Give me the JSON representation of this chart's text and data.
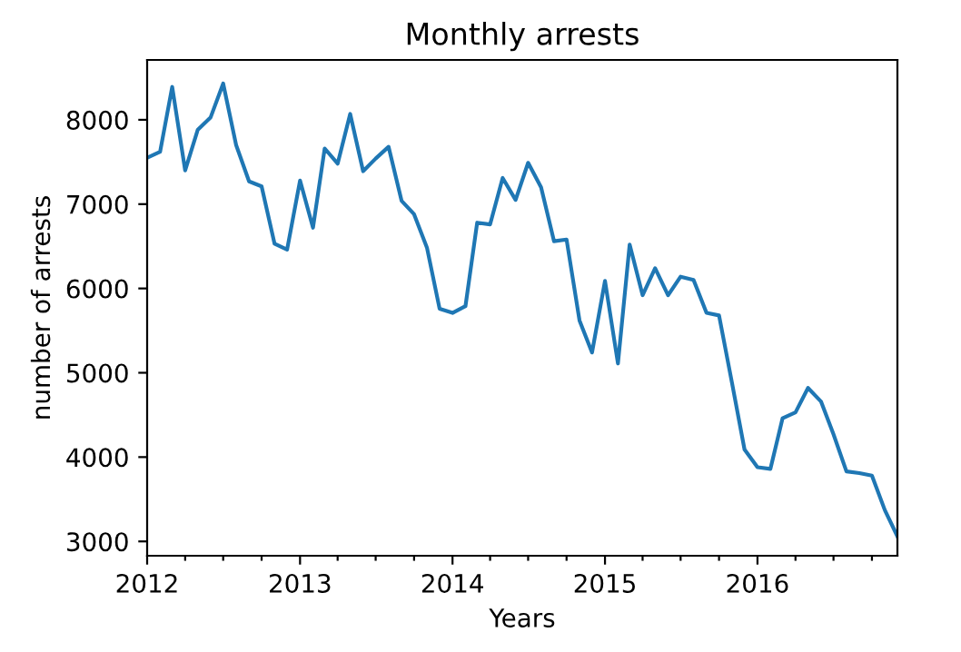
{
  "chart_data": {
    "type": "line",
    "title": "Monthly arrests",
    "xlabel": "Years",
    "ylabel": "number of arrests",
    "x": [
      "2012-01",
      "2012-02",
      "2012-03",
      "2012-04",
      "2012-05",
      "2012-06",
      "2012-07",
      "2012-08",
      "2012-09",
      "2012-10",
      "2012-11",
      "2012-12",
      "2013-01",
      "2013-02",
      "2013-03",
      "2013-04",
      "2013-05",
      "2013-06",
      "2013-07",
      "2013-08",
      "2013-09",
      "2013-10",
      "2013-11",
      "2013-12",
      "2014-01",
      "2014-02",
      "2014-03",
      "2014-04",
      "2014-05",
      "2014-06",
      "2014-07",
      "2014-08",
      "2014-09",
      "2014-10",
      "2014-11",
      "2014-12",
      "2015-01",
      "2015-02",
      "2015-03",
      "2015-04",
      "2015-05",
      "2015-06",
      "2015-07",
      "2015-08",
      "2015-09",
      "2015-10",
      "2015-11",
      "2015-12",
      "2016-01",
      "2016-02",
      "2016-03",
      "2016-04",
      "2016-05",
      "2016-06",
      "2016-07",
      "2016-08",
      "2016-09",
      "2016-10",
      "2016-11",
      "2016-12"
    ],
    "series": [
      {
        "color": "#1f77b4",
        "values": [
          7550,
          7620,
          8390,
          7400,
          7880,
          8030,
          8430,
          7700,
          7270,
          7210,
          6530,
          6460,
          7280,
          6720,
          7660,
          7480,
          8070,
          7390,
          7540,
          7680,
          7040,
          6880,
          6480,
          5760,
          5710,
          5790,
          6780,
          6760,
          7310,
          7050,
          7490,
          7200,
          6560,
          6580,
          5620,
          5240,
          6090,
          5110,
          6520,
          5920,
          6240,
          5920,
          6140,
          6100,
          5710,
          5680,
          4880,
          4090,
          3880,
          3860,
          4460,
          4530,
          4820,
          4660,
          4270,
          3830,
          3810,
          3780,
          3370,
          3060
        ]
      }
    ],
    "xlim": [
      "2012-01",
      "2016-12"
    ],
    "xticks": [
      {
        "value": "2012-01",
        "label": "2012"
      },
      {
        "value": "2012-04",
        "label": null
      },
      {
        "value": "2012-07",
        "label": null
      },
      {
        "value": "2012-10",
        "label": null
      },
      {
        "value": "2013-01",
        "label": "2013"
      },
      {
        "value": "2013-04",
        "label": null
      },
      {
        "value": "2013-07",
        "label": null
      },
      {
        "value": "2013-10",
        "label": null
      },
      {
        "value": "2014-01",
        "label": "2014"
      },
      {
        "value": "2014-04",
        "label": null
      },
      {
        "value": "2014-07",
        "label": null
      },
      {
        "value": "2014-10",
        "label": null
      },
      {
        "value": "2015-01",
        "label": "2015"
      },
      {
        "value": "2015-04",
        "label": null
      },
      {
        "value": "2015-07",
        "label": null
      },
      {
        "value": "2015-10",
        "label": null
      },
      {
        "value": "2016-01",
        "label": "2016"
      },
      {
        "value": "2016-04",
        "label": null
      },
      {
        "value": "2016-07",
        "label": null
      },
      {
        "value": "2016-10",
        "label": null
      }
    ],
    "ylim": [
      2830,
      8710
    ],
    "yticks": [
      3000,
      4000,
      5000,
      6000,
      7000,
      8000
    ],
    "grid": false,
    "legend": false
  }
}
